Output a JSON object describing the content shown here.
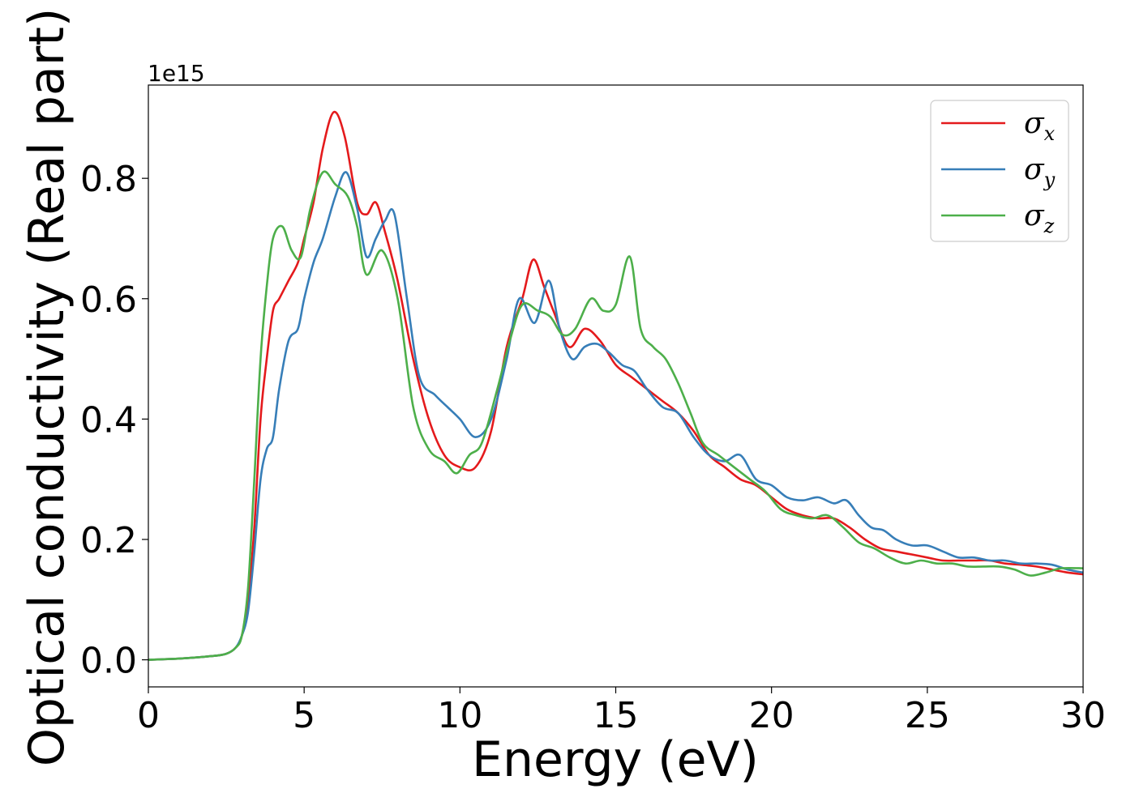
{
  "chart_data": {
    "type": "line",
    "xlabel": "Energy (eV)",
    "ylabel": "Optical conductivity (Real part)",
    "y_offset_label": "1e15",
    "xlim": [
      0,
      30
    ],
    "ylim": [
      -0.045,
      0.955
    ],
    "x_ticks": [
      0,
      5,
      10,
      15,
      20,
      25,
      30
    ],
    "x_tick_labels": [
      "0",
      "5",
      "10",
      "15",
      "20",
      "25",
      "30"
    ],
    "y_ticks": [
      0.0,
      0.2,
      0.4,
      0.6,
      0.8
    ],
    "y_tick_labels": [
      "0.0",
      "0.2",
      "0.4",
      "0.6",
      "0.8"
    ],
    "grid": false,
    "legend_position": "top-right",
    "series": [
      {
        "name": "σx",
        "symbol": "σ",
        "subscript": "x",
        "color": "#e41a1c",
        "x": [
          0,
          1,
          2,
          2.5,
          2.8,
          3.0,
          3.2,
          3.4,
          3.6,
          3.8,
          4.0,
          4.2,
          4.5,
          4.8,
          5.0,
          5.3,
          5.6,
          5.95,
          6.3,
          6.7,
          7.0,
          7.3,
          7.6,
          8.0,
          8.5,
          9.0,
          9.5,
          10.0,
          10.5,
          11.0,
          11.5,
          12.0,
          12.35,
          12.7,
          13.0,
          13.5,
          14.0,
          14.5,
          15.0,
          15.5,
          16.0,
          16.5,
          17.0,
          17.5,
          18.0,
          18.5,
          19.0,
          19.5,
          20.0,
          20.5,
          21.0,
          21.5,
          22.0,
          22.5,
          23.0,
          23.5,
          24.0,
          24.5,
          25.0,
          25.5,
          26.0,
          26.5,
          27.0,
          27.5,
          28.0,
          28.5,
          29.0,
          29.5,
          30.0
        ],
        "y": [
          0.0,
          0.002,
          0.006,
          0.01,
          0.02,
          0.04,
          0.1,
          0.22,
          0.4,
          0.5,
          0.58,
          0.6,
          0.63,
          0.66,
          0.7,
          0.76,
          0.85,
          0.91,
          0.87,
          0.76,
          0.74,
          0.76,
          0.71,
          0.63,
          0.5,
          0.4,
          0.34,
          0.32,
          0.32,
          0.38,
          0.52,
          0.6,
          0.665,
          0.62,
          0.58,
          0.52,
          0.55,
          0.53,
          0.49,
          0.47,
          0.45,
          0.43,
          0.41,
          0.38,
          0.34,
          0.32,
          0.3,
          0.29,
          0.27,
          0.25,
          0.24,
          0.235,
          0.235,
          0.22,
          0.2,
          0.185,
          0.18,
          0.175,
          0.17,
          0.165,
          0.165,
          0.165,
          0.165,
          0.16,
          0.158,
          0.155,
          0.15,
          0.145,
          0.142
        ]
      },
      {
        "name": "σy",
        "symbol": "σ",
        "subscript": "y",
        "color": "#377eb8",
        "x": [
          0,
          1,
          2,
          2.5,
          2.8,
          3.0,
          3.2,
          3.4,
          3.6,
          3.8,
          4.0,
          4.2,
          4.5,
          4.8,
          5.0,
          5.3,
          5.6,
          6.0,
          6.35,
          6.7,
          7.0,
          7.3,
          7.6,
          7.9,
          8.3,
          8.7,
          9.2,
          9.6,
          10.0,
          10.5,
          11.0,
          11.5,
          11.9,
          12.4,
          12.85,
          13.2,
          13.6,
          14.0,
          14.4,
          14.8,
          15.2,
          15.6,
          16.0,
          16.5,
          17.0,
          17.5,
          18.0,
          18.5,
          19.0,
          19.5,
          20.0,
          20.5,
          21.0,
          21.5,
          22.0,
          22.4,
          22.8,
          23.2,
          23.6,
          24.0,
          24.5,
          25.0,
          25.5,
          26.0,
          26.5,
          27.0,
          27.5,
          28.0,
          28.5,
          29.0,
          29.5,
          30.0
        ],
        "y": [
          0.0,
          0.002,
          0.006,
          0.01,
          0.02,
          0.04,
          0.08,
          0.18,
          0.3,
          0.35,
          0.37,
          0.45,
          0.53,
          0.55,
          0.6,
          0.66,
          0.7,
          0.77,
          0.81,
          0.75,
          0.67,
          0.7,
          0.73,
          0.74,
          0.6,
          0.47,
          0.44,
          0.42,
          0.4,
          0.37,
          0.4,
          0.5,
          0.6,
          0.56,
          0.63,
          0.55,
          0.5,
          0.52,
          0.525,
          0.51,
          0.49,
          0.48,
          0.45,
          0.42,
          0.41,
          0.37,
          0.34,
          0.33,
          0.34,
          0.3,
          0.29,
          0.27,
          0.265,
          0.27,
          0.26,
          0.265,
          0.24,
          0.22,
          0.215,
          0.2,
          0.19,
          0.19,
          0.18,
          0.17,
          0.17,
          0.165,
          0.165,
          0.16,
          0.16,
          0.158,
          0.15,
          0.145
        ]
      },
      {
        "name": "σz",
        "symbol": "σ",
        "subscript": "z",
        "color": "#4daf4a",
        "x": [
          0,
          1,
          2,
          2.5,
          2.8,
          3.0,
          3.2,
          3.4,
          3.6,
          3.8,
          4.0,
          4.3,
          4.6,
          4.9,
          5.2,
          5.6,
          6.0,
          6.4,
          6.7,
          7.0,
          7.5,
          8.0,
          8.5,
          9.0,
          9.5,
          9.9,
          10.3,
          10.7,
          11.2,
          11.6,
          12.0,
          12.5,
          12.9,
          13.3,
          13.7,
          14.2,
          14.6,
          15.0,
          15.45,
          15.8,
          16.2,
          16.6,
          17.0,
          17.4,
          17.8,
          18.3,
          18.8,
          19.3,
          19.8,
          20.3,
          20.8,
          21.3,
          21.8,
          22.3,
          22.8,
          23.3,
          23.8,
          24.3,
          24.8,
          25.3,
          25.8,
          26.3,
          26.8,
          27.3,
          27.8,
          28.3,
          28.8,
          29.3,
          30.0
        ],
        "y": [
          0.0,
          0.002,
          0.006,
          0.01,
          0.02,
          0.04,
          0.12,
          0.3,
          0.5,
          0.62,
          0.7,
          0.72,
          0.68,
          0.67,
          0.75,
          0.81,
          0.79,
          0.77,
          0.72,
          0.64,
          0.68,
          0.6,
          0.42,
          0.35,
          0.33,
          0.31,
          0.34,
          0.36,
          0.45,
          0.53,
          0.59,
          0.58,
          0.57,
          0.54,
          0.55,
          0.6,
          0.58,
          0.59,
          0.67,
          0.55,
          0.52,
          0.5,
          0.46,
          0.41,
          0.36,
          0.34,
          0.32,
          0.3,
          0.28,
          0.25,
          0.24,
          0.235,
          0.24,
          0.22,
          0.195,
          0.185,
          0.17,
          0.16,
          0.165,
          0.16,
          0.16,
          0.155,
          0.155,
          0.155,
          0.15,
          0.14,
          0.145,
          0.152,
          0.152
        ]
      }
    ]
  }
}
